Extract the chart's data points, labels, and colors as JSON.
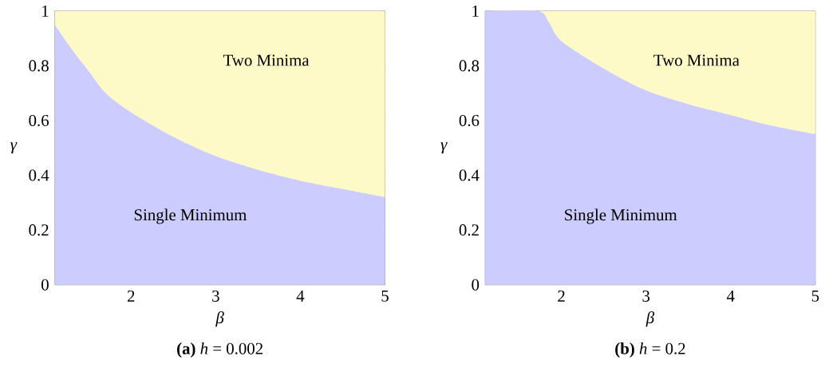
{
  "chart_data": [
    {
      "type": "area",
      "stacked": true,
      "subtitle": "**(a)** *h* = 0.002",
      "xlabel": "*β*",
      "ylabel": "*γ*",
      "x": [
        1.1,
        1.3,
        1.5,
        1.7,
        2,
        2.5,
        3,
        3.5,
        4,
        4.5,
        5
      ],
      "series": [
        {
          "name": "Single Minimum",
          "color": "#ccccff",
          "values": [
            0.95,
            0.86,
            0.78,
            0.7,
            0.63,
            0.54,
            0.47,
            0.42,
            0.38,
            0.35,
            0.32
          ]
        },
        {
          "name": "Two Minima",
          "color": "#fdfac8",
          "values": [
            0.05,
            0.14,
            0.22,
            0.3,
            0.37,
            0.46,
            0.53,
            0.58,
            0.62,
            0.65,
            0.68
          ]
        }
      ],
      "xlim": [
        1.1,
        5
      ],
      "ylim": [
        0,
        1
      ],
      "xticks": [
        2,
        3,
        4,
        5
      ],
      "yticks": [
        0,
        0.2,
        0.4,
        0.6,
        0.8,
        1
      ]
    },
    {
      "type": "area",
      "stacked": true,
      "subtitle": "**(b)** *h* = 0.2",
      "xlabel": "*β*",
      "ylabel": "*γ*",
      "x": [
        1.1,
        1.72,
        1.85,
        2,
        2.5,
        3,
        3.5,
        4,
        4.5,
        5
      ],
      "series": [
        {
          "name": "Single Minimum",
          "color": "#ccccff",
          "values": [
            1,
            1,
            0.96,
            0.89,
            0.79,
            0.71,
            0.66,
            0.62,
            0.58,
            0.55
          ]
        },
        {
          "name": "Two Minima",
          "color": "#fdfac8",
          "values": [
            0,
            0,
            0.04,
            0.11,
            0.21,
            0.29,
            0.34,
            0.38,
            0.42,
            0.45
          ]
        }
      ],
      "xlim": [
        1.1,
        5
      ],
      "ylim": [
        0,
        1
      ],
      "xticks": [
        2,
        3,
        4,
        5
      ],
      "yticks": [
        0,
        0.2,
        0.4,
        0.6,
        0.8,
        1
      ]
    }
  ]
}
